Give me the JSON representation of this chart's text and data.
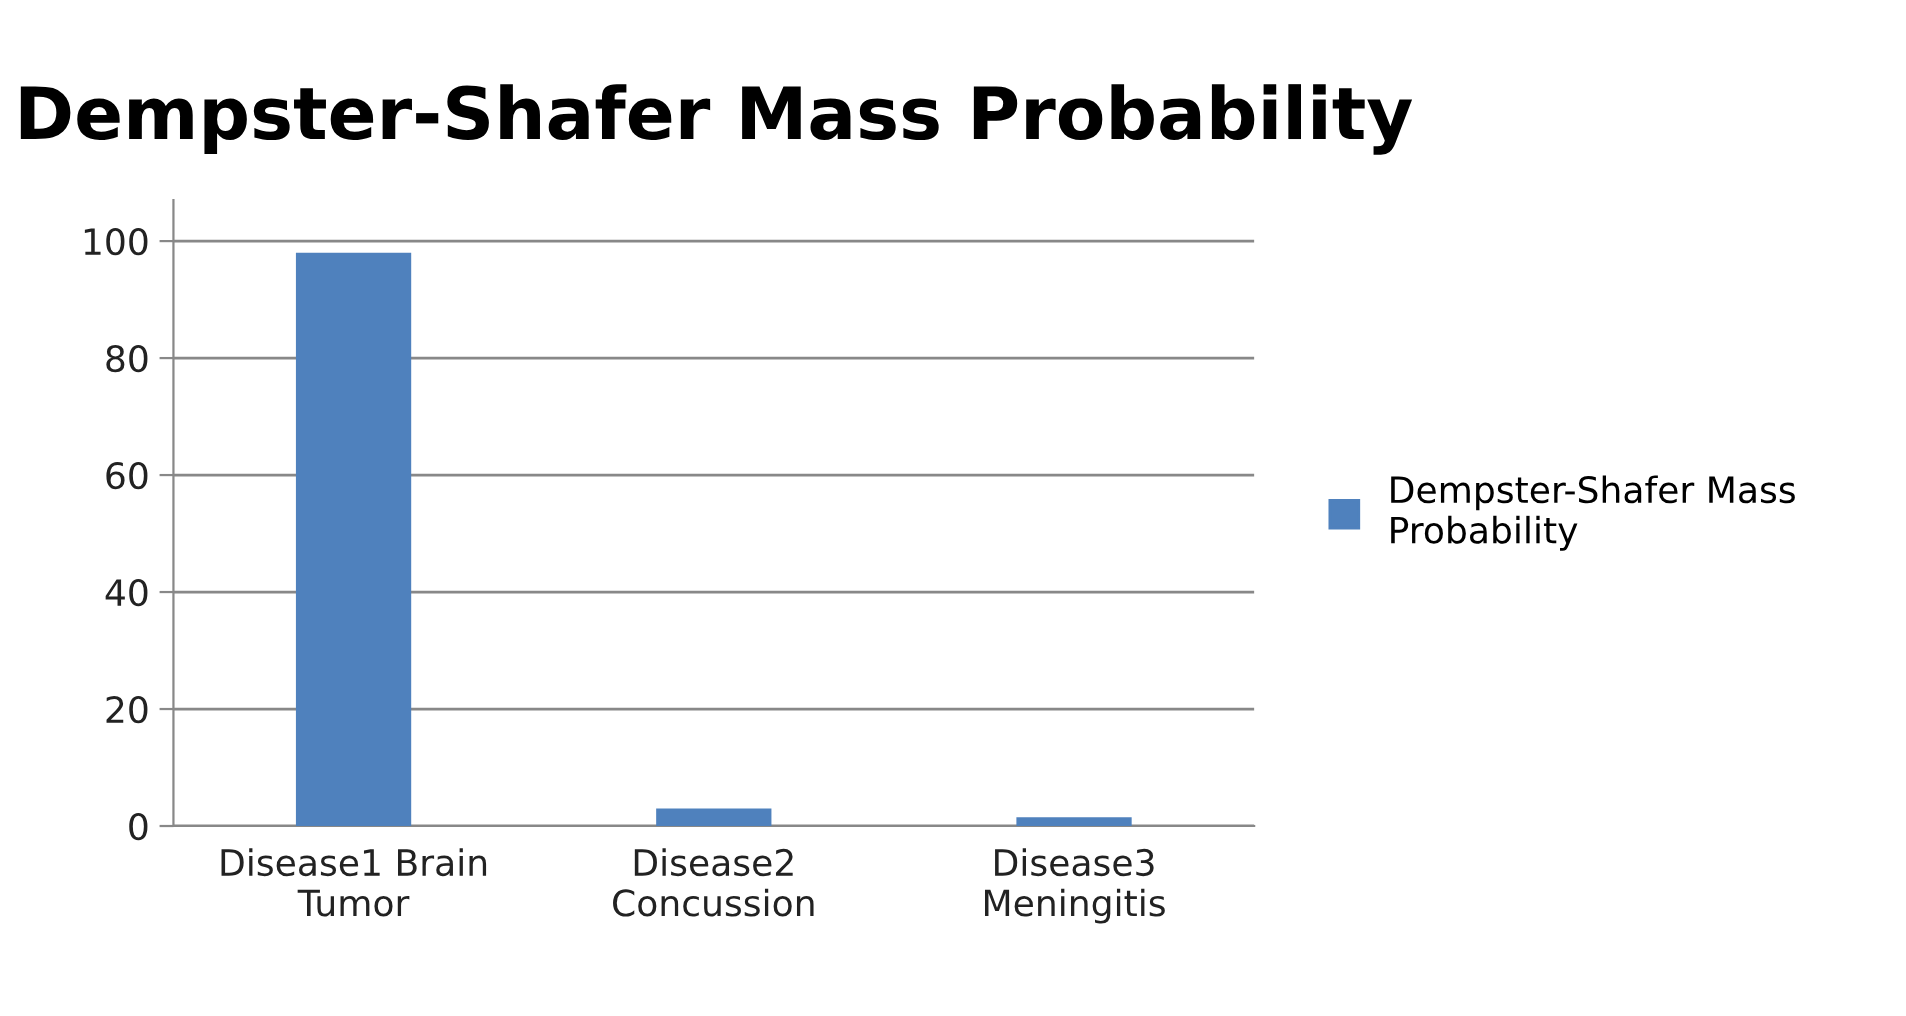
{
  "chart_data": {
    "type": "bar",
    "title": "Dempster-Shafer Mass Probability",
    "categories": [
      "Disease1 Brain Tumor",
      "Disease2 Concussion",
      "Disease3 Meningitis"
    ],
    "series": [
      {
        "name": "Dempster-Shafer Mass Probability",
        "color": "#4f81bd",
        "values": [
          98,
          3,
          1.5
        ]
      }
    ],
    "ylim": [
      0,
      107
    ],
    "yticks": [
      0,
      20,
      40,
      60,
      80,
      100
    ],
    "grid": "y",
    "legend": "right"
  }
}
